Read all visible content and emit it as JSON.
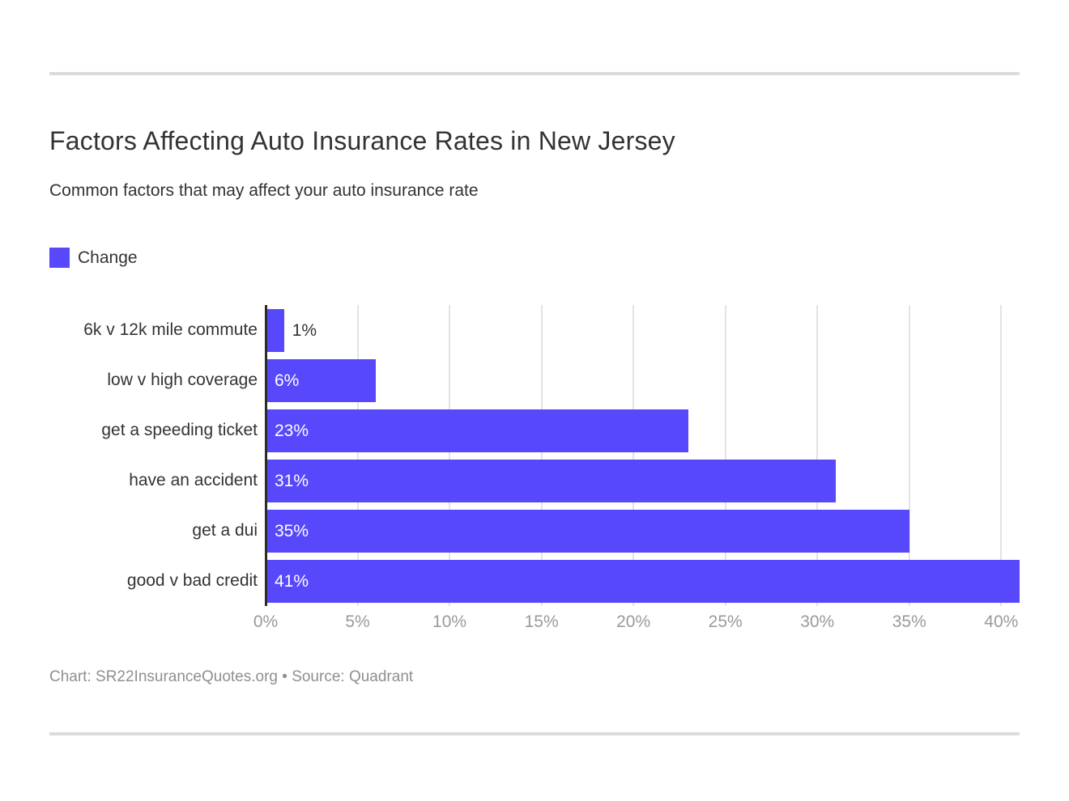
{
  "header": {
    "title": "Factors Affecting Auto Insurance Rates in New Jersey",
    "subtitle": "Common factors that may affect your auto insurance rate"
  },
  "legend": {
    "label": "Change"
  },
  "chart_data": {
    "type": "bar",
    "orientation": "horizontal",
    "title": "Factors Affecting Auto Insurance Rates in New Jersey",
    "subtitle": "Common factors that may affect your auto insurance rate",
    "legend_entries": [
      "Change"
    ],
    "legend_position": "top-left",
    "categories": [
      "6k v 12k mile commute",
      "low v high coverage",
      "get a speeding ticket",
      "have an accident",
      "get a dui",
      "good v bad credit"
    ],
    "values": [
      1,
      6,
      23,
      31,
      35,
      41
    ],
    "value_labels": [
      "1%",
      "6%",
      "23%",
      "31%",
      "35%",
      "41%"
    ],
    "xlabel": "",
    "ylabel": "",
    "xlim": [
      0,
      41
    ],
    "x_ticks": [
      0,
      5,
      10,
      15,
      20,
      25,
      30,
      35,
      40
    ],
    "x_tick_labels": [
      "0%",
      "5%",
      "10%",
      "15%",
      "20%",
      "25%",
      "30%",
      "35%",
      "40%"
    ],
    "grid": "vertical"
  },
  "colors": {
    "bar": "#5748fb",
    "text_dark": "#333333",
    "tick_text": "#9a9a9a",
    "gridline": "#e3e3e3",
    "axis_line": "#2b2b2b",
    "divider": "#dcdcdc",
    "credit_text": "#8f8f8f"
  },
  "footer": {
    "credit": "Chart: SR22InsuranceQuotes.org • Source: Quadrant"
  }
}
